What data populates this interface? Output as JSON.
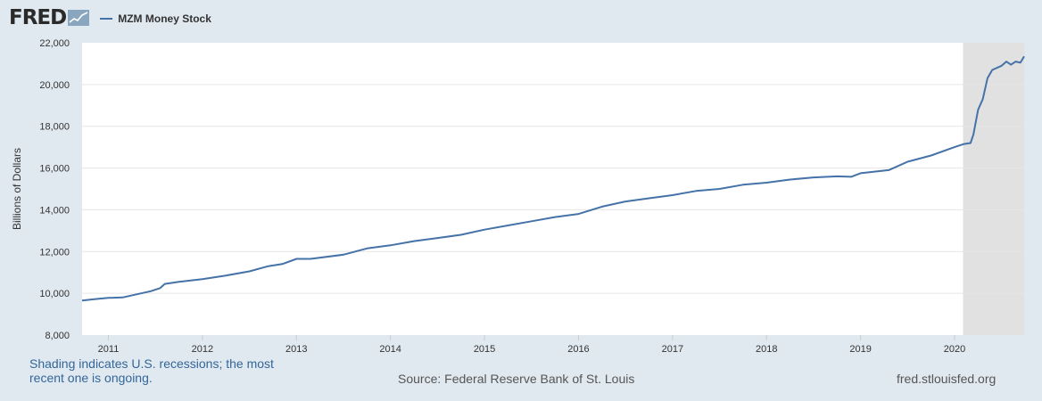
{
  "header": {
    "logo": "FRED",
    "legend_label": "MZM Money Stock"
  },
  "footer": {
    "note": "Shading indicates U.S. recessions; the most recent one is ongoing.",
    "source": "Source: Federal Reserve Bank of St. Louis",
    "url": "fred.stlouisfed.org"
  },
  "chart_data": {
    "type": "line",
    "title": "",
    "xlabel": "",
    "ylabel": "Billions of Dollars",
    "ylim": [
      8000,
      22000
    ],
    "xlim": [
      2010.72,
      2020.74
    ],
    "y_ticks": [
      "8,000",
      "10,000",
      "12,000",
      "14,000",
      "16,000",
      "18,000",
      "20,000",
      "22,000"
    ],
    "x_ticks": [
      "2011",
      "2012",
      "2013",
      "2014",
      "2015",
      "2016",
      "2017",
      "2018",
      "2019",
      "2020"
    ],
    "grid": true,
    "legend_position": "top-left",
    "recession_shading": [
      {
        "start": 2020.09,
        "end": 2020.74
      }
    ],
    "series": [
      {
        "name": "MZM Money Stock",
        "color": "#4572a7",
        "x": [
          2010.72,
          2010.85,
          2011.0,
          2011.15,
          2011.3,
          2011.45,
          2011.55,
          2011.6,
          2011.75,
          2012.0,
          2012.25,
          2012.5,
          2012.7,
          2012.85,
          2013.0,
          2013.15,
          2013.5,
          2013.75,
          2014.0,
          2014.25,
          2014.5,
          2014.75,
          2015.0,
          2015.25,
          2015.5,
          2015.75,
          2016.0,
          2016.25,
          2016.5,
          2016.75,
          2017.0,
          2017.25,
          2017.5,
          2017.75,
          2018.0,
          2018.25,
          2018.5,
          2018.75,
          2018.9,
          2019.0,
          2019.3,
          2019.5,
          2019.75,
          2020.0,
          2020.1,
          2020.17,
          2020.2,
          2020.25,
          2020.3,
          2020.35,
          2020.4,
          2020.5,
          2020.55,
          2020.6,
          2020.65,
          2020.7,
          2020.74
        ],
        "values": [
          9650,
          9720,
          9780,
          9800,
          9950,
          10100,
          10250,
          10450,
          10550,
          10680,
          10850,
          11050,
          11300,
          11400,
          11650,
          11650,
          11850,
          12150,
          12300,
          12500,
          12650,
          12800,
          13050,
          13250,
          13450,
          13650,
          13800,
          14150,
          14400,
          14550,
          14700,
          14900,
          15000,
          15200,
          15300,
          15450,
          15550,
          15600,
          15580,
          15750,
          15900,
          16300,
          16600,
          17000,
          17150,
          17200,
          17600,
          18800,
          19300,
          20300,
          20700,
          20900,
          21100,
          20950,
          21100,
          21050,
          21350
        ]
      }
    ]
  }
}
